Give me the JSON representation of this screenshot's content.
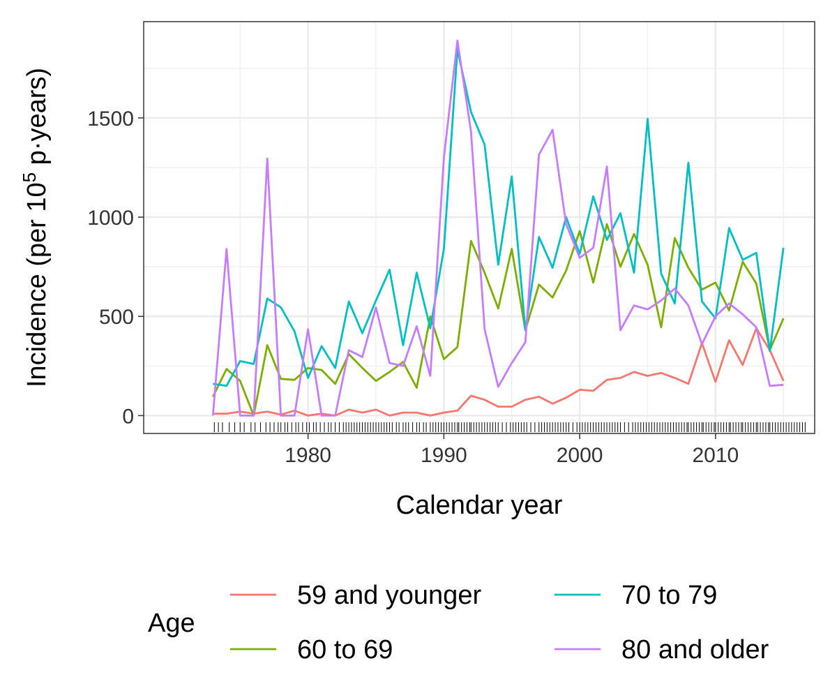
{
  "chart_data": {
    "type": "line",
    "xlabel": "Calendar year",
    "ylabel_main": "Incidence (per 10",
    "ylabel_sup": "5",
    "ylabel_tail": " p·years)",
    "xlim": [
      1967.9,
      2017.3
    ],
    "ylim": [
      -90,
      1985
    ],
    "x_ticks": [
      1980,
      1990,
      2000,
      2010
    ],
    "x_tick_labels": [
      "1980",
      "1990",
      "2000",
      "2010"
    ],
    "x_minor_ticks": [
      1975,
      1985,
      1995,
      2005,
      2015
    ],
    "y_ticks": [
      0,
      500,
      1000,
      1500
    ],
    "y_tick_labels": [
      "0",
      "500",
      "1000",
      "1500"
    ],
    "y_minor_ticks": [
      250,
      750,
      1250,
      1750
    ],
    "grid": true,
    "rug": true,
    "legend": {
      "title": "Age",
      "position": "bottom"
    },
    "x": [
      1973,
      1974,
      1975,
      1976,
      1977,
      1978,
      1979,
      1980,
      1981,
      1982,
      1983,
      1984,
      1985,
      1986,
      1987,
      1988,
      1989,
      1990,
      1991,
      1992,
      1993,
      1994,
      1995,
      1996,
      1997,
      1998,
      1999,
      2000,
      2001,
      2002,
      2003,
      2004,
      2005,
      2006,
      2007,
      2008,
      2009,
      2010,
      2011,
      2012,
      2013,
      2014,
      2015
    ],
    "series": [
      {
        "name": "59 and younger",
        "color": "#F8766D",
        "values": [
          10,
          10,
          20,
          10,
          20,
          5,
          25,
          0,
          10,
          0,
          30,
          15,
          30,
          0,
          15,
          15,
          0,
          15,
          25,
          100,
          80,
          45,
          45,
          80,
          95,
          60,
          90,
          130,
          125,
          180,
          190,
          220,
          200,
          215,
          190,
          160,
          365,
          170,
          380,
          255,
          440,
          330,
          175
        ]
      },
      {
        "name": "60 to 69",
        "color": "#7CAE00",
        "values": [
          95,
          235,
          175,
          0,
          355,
          185,
          180,
          240,
          230,
          160,
          310,
          240,
          175,
          220,
          270,
          140,
          500,
          285,
          345,
          880,
          720,
          540,
          840,
          430,
          660,
          595,
          730,
          930,
          670,
          965,
          750,
          915,
          760,
          445,
          895,
          745,
          635,
          670,
          530,
          775,
          665,
          330,
          490
        ]
      },
      {
        "name": "70 to 79",
        "color": "#00BFC4",
        "values": [
          160,
          150,
          275,
          260,
          590,
          545,
          425,
          190,
          350,
          240,
          575,
          415,
          580,
          735,
          355,
          720,
          440,
          840,
          1845,
          1530,
          1365,
          760,
          1205,
          430,
          900,
          745,
          1000,
          815,
          1105,
          885,
          1020,
          720,
          1495,
          715,
          565,
          1275,
          575,
          490,
          945,
          785,
          820,
          325,
          845
        ]
      },
      {
        "name": "80 and older",
        "color": "#C77CFF",
        "values": [
          0,
          840,
          0,
          0,
          1295,
          0,
          0,
          435,
          0,
          0,
          330,
          295,
          545,
          265,
          250,
          450,
          200,
          1300,
          1890,
          1430,
          435,
          145,
          265,
          370,
          1315,
          1440,
          965,
          795,
          845,
          1255,
          430,
          555,
          535,
          580,
          640,
          555,
          360,
          500,
          565,
          510,
          445,
          150,
          155
        ]
      }
    ],
    "rug_x": [
      1973.1,
      1973.4,
      1973.7,
      1974.2,
      1974.6,
      1975.0,
      1975.3,
      1975.8,
      1976.1,
      1976.5,
      1976.9,
      1977.2,
      1977.5,
      1977.8,
      1978.0,
      1978.3,
      1978.5,
      1978.8,
      1979.1,
      1979.3,
      1979.6,
      1979.9,
      1980.1,
      1980.4,
      1980.6,
      1980.9,
      1981.2,
      1981.5,
      1981.7,
      1982.0,
      1982.3,
      1982.6,
      1982.8,
      1983.0,
      1983.2,
      1983.4,
      1983.6,
      1983.8,
      1984.0,
      1984.2,
      1984.4,
      1984.6,
      1984.8,
      1985.0,
      1985.2,
      1985.4,
      1985.6,
      1985.8,
      1986.0,
      1986.2,
      1986.5,
      1986.7,
      1987.0,
      1987.2,
      1987.4,
      1987.7,
      1988.0,
      1988.2,
      1988.5,
      1988.7,
      1989.0,
      1989.2,
      1989.4,
      1989.6,
      1989.8,
      1990.0,
      1990.2,
      1990.4,
      1990.6,
      1990.8,
      1991.0,
      1991.1,
      1991.3,
      1991.5,
      1991.7,
      1991.9,
      1992.0,
      1992.2,
      1992.4,
      1992.6,
      1992.8,
      1993.0,
      1993.2,
      1993.4,
      1993.6,
      1993.8,
      1994.0,
      1994.3,
      1994.6,
      1994.9,
      1995.1,
      1995.3,
      1995.5,
      1995.7,
      1995.9,
      1996.1,
      1996.4,
      1996.7,
      1997.0,
      1997.2,
      1997.4,
      1997.6,
      1997.8,
      1998.0,
      1998.2,
      1998.4,
      1998.6,
      1998.8,
      1999.0,
      1999.2,
      1999.5,
      1999.8,
      2000.0,
      2000.2,
      2000.4,
      2000.6,
      2000.8,
      2001.0,
      2001.2,
      2001.4,
      2001.6,
      2001.8,
      2002.0,
      2002.2,
      2002.4,
      2002.6,
      2002.8,
      2003.0,
      2003.3,
      2003.6,
      2003.9,
      2004.1,
      2004.3,
      2004.5,
      2004.7,
      2004.9,
      2005.1,
      2005.3,
      2005.5,
      2005.7,
      2005.9,
      2006.1,
      2006.3,
      2006.5,
      2006.7,
      2006.9,
      2007.1,
      2007.3,
      2007.5,
      2007.7,
      2007.9,
      2008.0,
      2008.2,
      2008.4,
      2008.6,
      2008.8,
      2009.0,
      2009.1,
      2009.3,
      2009.5,
      2009.7,
      2009.9,
      2010.0,
      2010.2,
      2010.4,
      2010.6,
      2010.8,
      2011.0,
      2011.1,
      2011.3,
      2011.5,
      2011.7,
      2011.9,
      2012.0,
      2012.2,
      2012.4,
      2012.6,
      2012.8,
      2013.0,
      2013.1,
      2013.3,
      2013.5,
      2013.7,
      2013.9,
      2014.0,
      2014.2,
      2014.4,
      2014.6,
      2014.8,
      2015.0,
      2015.2,
      2015.4,
      2015.6,
      2015.8,
      2016.0,
      2016.2,
      2016.4,
      2016.6
    ]
  }
}
